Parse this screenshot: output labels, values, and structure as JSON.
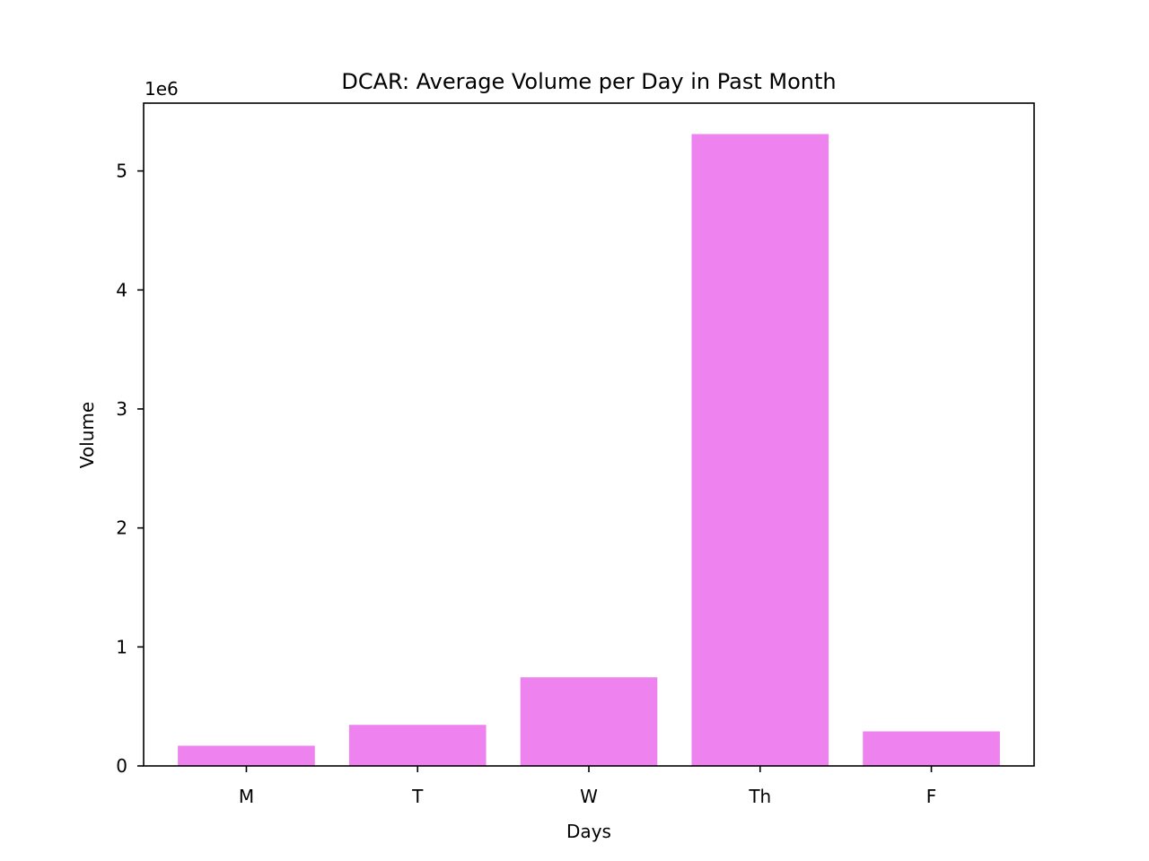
{
  "chart_data": {
    "type": "bar",
    "title": "DCAR: Average Volume per Day in Past Month",
    "xlabel": "Days",
    "ylabel": "Volume",
    "y_offset_label": "1e6",
    "categories": [
      "M",
      "T",
      "W",
      "Th",
      "F"
    ],
    "values": [
      170000,
      345000,
      745000,
      5310000,
      290000
    ],
    "ylim": [
      0,
      5570000
    ],
    "yticks": [
      0,
      1000000,
      2000000,
      3000000,
      4000000,
      5000000
    ],
    "ytick_labels": [
      "0",
      "1",
      "2",
      "3",
      "4",
      "5"
    ],
    "bar_color": "#ee82ee",
    "grid": false,
    "legend": "none"
  }
}
